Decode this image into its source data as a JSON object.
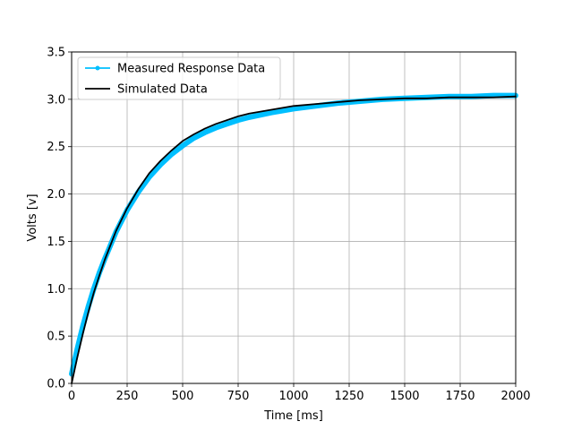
{
  "chart_data": {
    "type": "line",
    "title": "",
    "xlabel": "Time [ms]",
    "ylabel": "Volts [v]",
    "xlim": [
      0,
      2000
    ],
    "ylim": [
      0,
      3.5
    ],
    "xticks": [
      0,
      250,
      500,
      750,
      1000,
      1250,
      1500,
      1750,
      2000
    ],
    "yticks": [
      0.0,
      0.5,
      1.0,
      1.5,
      2.0,
      2.5,
      3.0,
      3.5
    ],
    "xtick_labels": [
      "0",
      "250",
      "500",
      "750",
      "1000",
      "1250",
      "1500",
      "1750",
      "2000"
    ],
    "ytick_labels": [
      "0.0",
      "0.5",
      "1.0",
      "1.5",
      "2.0",
      "2.5",
      "3.0",
      "3.5"
    ],
    "grid": true,
    "legend_position": "upper-left",
    "series": [
      {
        "name": "Measured Response Data",
        "color": "#00bfff",
        "marker": "dot",
        "x": [
          0,
          25,
          50,
          75,
          100,
          125,
          150,
          200,
          250,
          300,
          350,
          400,
          450,
          500,
          550,
          600,
          650,
          700,
          750,
          800,
          900,
          1000,
          1100,
          1200,
          1300,
          1400,
          1500,
          1600,
          1700,
          1800,
          1900,
          2000
        ],
        "y": [
          0.1,
          0.36,
          0.6,
          0.81,
          1.0,
          1.17,
          1.32,
          1.6,
          1.83,
          2.02,
          2.18,
          2.31,
          2.42,
          2.51,
          2.59,
          2.65,
          2.7,
          2.74,
          2.78,
          2.81,
          2.86,
          2.9,
          2.93,
          2.96,
          2.98,
          3.0,
          3.01,
          3.02,
          3.03,
          3.03,
          3.04,
          3.04
        ]
      },
      {
        "name": "Simulated Data",
        "color": "#000000",
        "marker": "none",
        "x": [
          0,
          25,
          50,
          75,
          100,
          125,
          150,
          200,
          250,
          300,
          350,
          400,
          450,
          500,
          550,
          600,
          650,
          700,
          750,
          800,
          900,
          1000,
          1100,
          1200,
          1300,
          1400,
          1500,
          1600,
          1700,
          1800,
          1900,
          2000
        ],
        "y": [
          0.0,
          0.27,
          0.52,
          0.75,
          0.96,
          1.14,
          1.31,
          1.61,
          1.85,
          2.05,
          2.22,
          2.35,
          2.46,
          2.56,
          2.63,
          2.69,
          2.74,
          2.78,
          2.82,
          2.85,
          2.89,
          2.93,
          2.95,
          2.97,
          2.99,
          3.0,
          3.01,
          3.01,
          3.02,
          3.02,
          3.02,
          3.03
        ]
      }
    ]
  }
}
